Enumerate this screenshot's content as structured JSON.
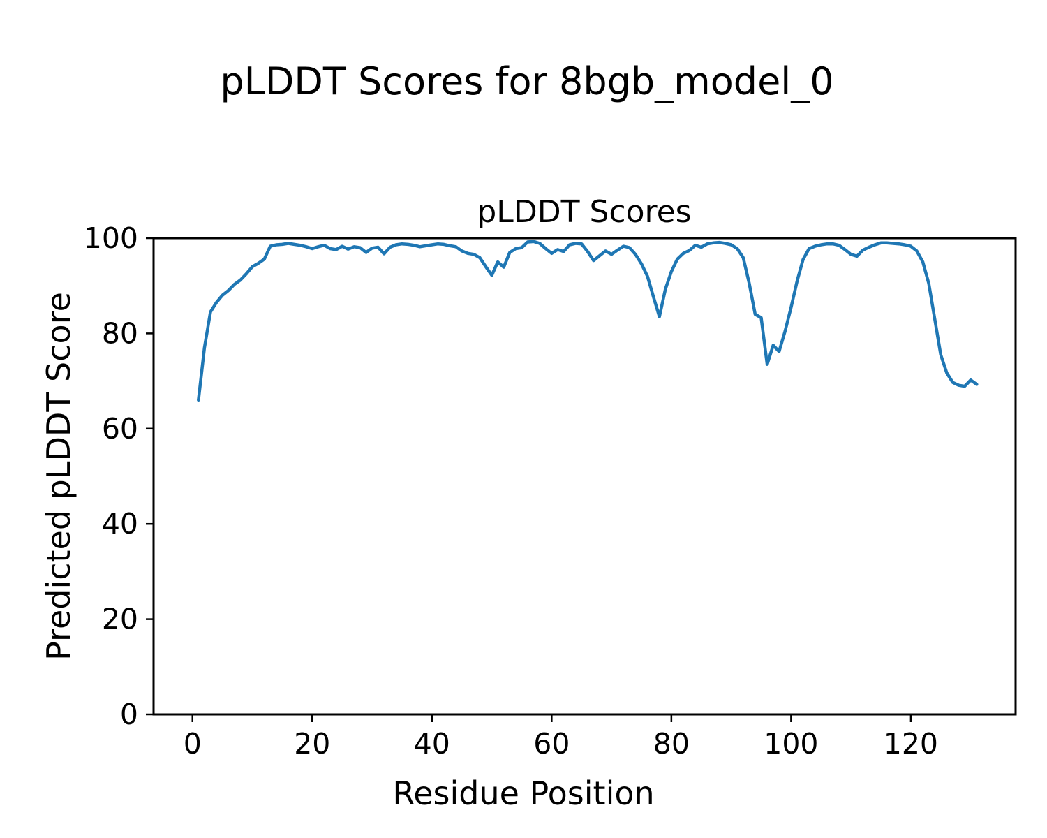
{
  "figure": {
    "suptitle": "pLDDT Scores for 8bgb_model_0"
  },
  "chart_data": {
    "type": "line",
    "title": "pLDDT Scores",
    "xlabel": "Residue Position",
    "ylabel": "Predicted pLDDT Score",
    "grid": false,
    "legend": "none",
    "xlim": [
      -6.5,
      137.5
    ],
    "ylim": [
      0,
      100
    ],
    "x_ticks": [
      0,
      20,
      40,
      60,
      80,
      100,
      120
    ],
    "y_ticks": [
      0,
      20,
      40,
      60,
      80,
      100
    ],
    "line_color": "#1f77b4",
    "series": [
      {
        "name": "pLDDT",
        "x_start": 1,
        "x_step": 1,
        "values": [
          66.0,
          77.0,
          84.5,
          86.5,
          88.0,
          89.0,
          90.3,
          91.2,
          92.5,
          94.0,
          94.7,
          95.6,
          98.3,
          98.6,
          98.7,
          98.9,
          98.7,
          98.5,
          98.2,
          97.8,
          98.2,
          98.5,
          97.8,
          97.6,
          98.3,
          97.7,
          98.2,
          98.0,
          97.0,
          97.9,
          98.1,
          96.7,
          98.1,
          98.6,
          98.8,
          98.7,
          98.5,
          98.2,
          98.4,
          98.6,
          98.8,
          98.7,
          98.4,
          98.2,
          97.3,
          96.8,
          96.6,
          95.9,
          94.0,
          92.2,
          95.0,
          93.9,
          97.0,
          97.8,
          98.0,
          99.2,
          99.3,
          98.9,
          97.8,
          96.8,
          97.6,
          97.2,
          98.6,
          98.9,
          98.8,
          97.2,
          95.3,
          96.3,
          97.3,
          96.6,
          97.5,
          98.3,
          98.0,
          96.6,
          94.6,
          92.0,
          87.7,
          83.5,
          89.3,
          93.0,
          95.6,
          96.8,
          97.4,
          98.5,
          98.1,
          98.8,
          99.0,
          99.1,
          98.9,
          98.6,
          97.8,
          95.9,
          90.5,
          84.0,
          83.3,
          73.5,
          77.5,
          76.2,
          80.5,
          85.5,
          91.0,
          95.5,
          97.8,
          98.3,
          98.6,
          98.8,
          98.8,
          98.5,
          97.6,
          96.6,
          96.2,
          97.5,
          98.1,
          98.6,
          99.0,
          99.0,
          98.9,
          98.8,
          98.6,
          98.3,
          97.3,
          95.0,
          90.5,
          83.0,
          75.5,
          71.7,
          69.7,
          69.1,
          68.9,
          70.2,
          69.3
        ]
      }
    ]
  }
}
